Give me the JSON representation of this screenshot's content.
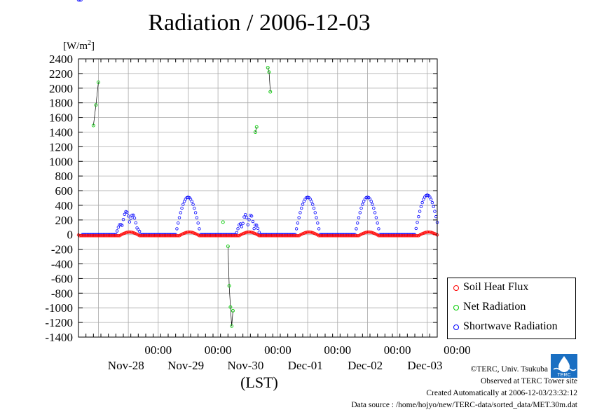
{
  "title": "Radiation / 2006-12-03",
  "chart_data": {
    "type": "line",
    "ylabel": "[W/m2]",
    "ylabel_base": "[W/m",
    "ylabel_sup": "2",
    "ylabel_close": "]",
    "xlabel": "(LST)",
    "ylim": [
      -1400,
      2400
    ],
    "yticks": [
      2400,
      2200,
      2000,
      1800,
      1600,
      1400,
      1200,
      1000,
      800,
      600,
      400,
      200,
      0,
      -200,
      -400,
      -600,
      -800,
      -1000,
      -1200,
      -1400
    ],
    "xlim": [
      0,
      144
    ],
    "x_unit": "hours from 2006-11-27 16:00 LST",
    "xticks": [
      {
        "x": 32,
        "time": "00:00",
        "date": "Nov-28"
      },
      {
        "x": 56,
        "time": "00:00",
        "date": "Nov-29"
      },
      {
        "x": 80,
        "time": "00:00",
        "date": "Nov-30"
      },
      {
        "x": 104,
        "time": "00:00",
        "date": "Dec-01"
      },
      {
        "x": 128,
        "time": "00:00",
        "date": "Dec-02"
      },
      {
        "x": 152,
        "time": "00:00",
        "date": "Dec-03"
      }
    ],
    "grid": true,
    "legend_position": "bottom-right",
    "series": [
      {
        "name": "Soil Heat Flux",
        "color": "#ff0000"
      },
      {
        "name": "Net Radiation",
        "color": "#00cc00",
        "segments": [
          [
            [
              6,
              1490
            ],
            [
              7,
              1770
            ],
            [
              8,
              2080
            ]
          ],
          [
            [
              58,
              170
            ]
          ],
          [
            [
              60,
              -160
            ],
            [
              60.5,
              -700
            ],
            [
              61,
              -990
            ],
            [
              61.5,
              -1250
            ],
            [
              62,
              -1040
            ]
          ],
          [
            [
              71,
              1400
            ],
            [
              71.5,
              1470
            ]
          ],
          [
            [
              76,
              2280
            ],
            [
              76.5,
              2220
            ],
            [
              77,
              1950
            ]
          ]
        ]
      },
      {
        "name": "Shortwave Radiation",
        "color": "#0000ff"
      }
    ]
  },
  "footer": {
    "copyright": "©TERC, Univ. Tsukuba",
    "observed": "Observed at TERC Tower site",
    "created": "Created Automatically at 2006-12-03/23:32:12",
    "source": "Data source : /home/hojyo/new/TERC-data/sorted_data/MET.30m.dat"
  },
  "logo_text": "TERC"
}
